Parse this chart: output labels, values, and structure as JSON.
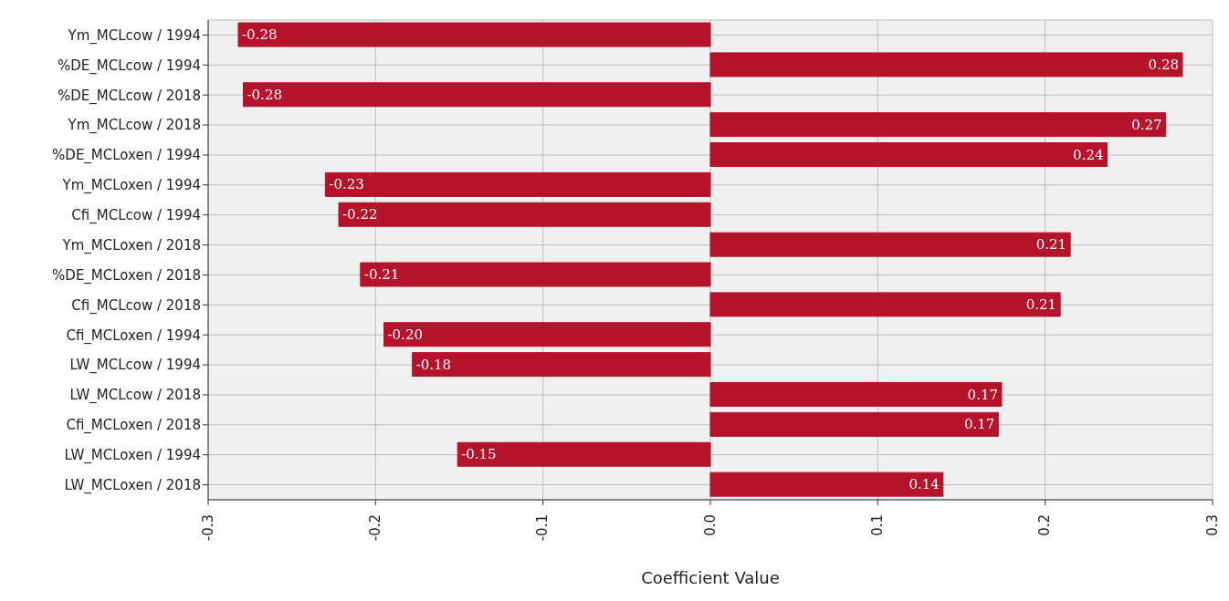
{
  "chart_data": {
    "type": "bar",
    "orientation": "horizontal",
    "xlabel": "Coefficient Value",
    "categories": [
      "Ym_MCLcow / 1994",
      "%DE_MCLcow / 1994",
      "%DE_MCLcow / 2018",
      "Ym_MCLcow / 2018",
      "%DE_MCLoxen / 1994",
      "Ym_MCLoxen / 1994",
      "Cfi_MCLcow / 1994",
      "Ym_MCLoxen / 2018",
      "%DE_MCLoxen / 2018",
      "Cfi_MCLcow / 2018",
      "Cfi_MCLoxen / 1994",
      "LW_MCLcow / 1994",
      "LW_MCLcow / 2018",
      "Cfi_MCLoxen / 2018",
      "LW_MCLoxen / 1994",
      "LW_MCLoxen / 2018"
    ],
    "values": [
      -0.282,
      0.282,
      -0.279,
      0.272,
      0.237,
      -0.23,
      -0.222,
      0.215,
      -0.209,
      0.209,
      -0.195,
      -0.178,
      0.174,
      0.172,
      -0.151,
      0.139
    ],
    "value_labels": [
      "-0.28",
      "0.28",
      "-0.28",
      "0.27",
      "0.24",
      "-0.23",
      "-0.22",
      "0.21",
      "-0.21",
      "0.21",
      "-0.20",
      "-0.18",
      "0.17",
      "0.17",
      "-0.15",
      "0.14"
    ],
    "color": "#b5122b",
    "xlim": [
      -0.3,
      0.3
    ],
    "xticks": [
      -0.3,
      -0.2,
      -0.1,
      {
        "value": 0,
        "label": "0.0"
      },
      0.1,
      0.2,
      0.3
    ],
    "grid": true
  }
}
